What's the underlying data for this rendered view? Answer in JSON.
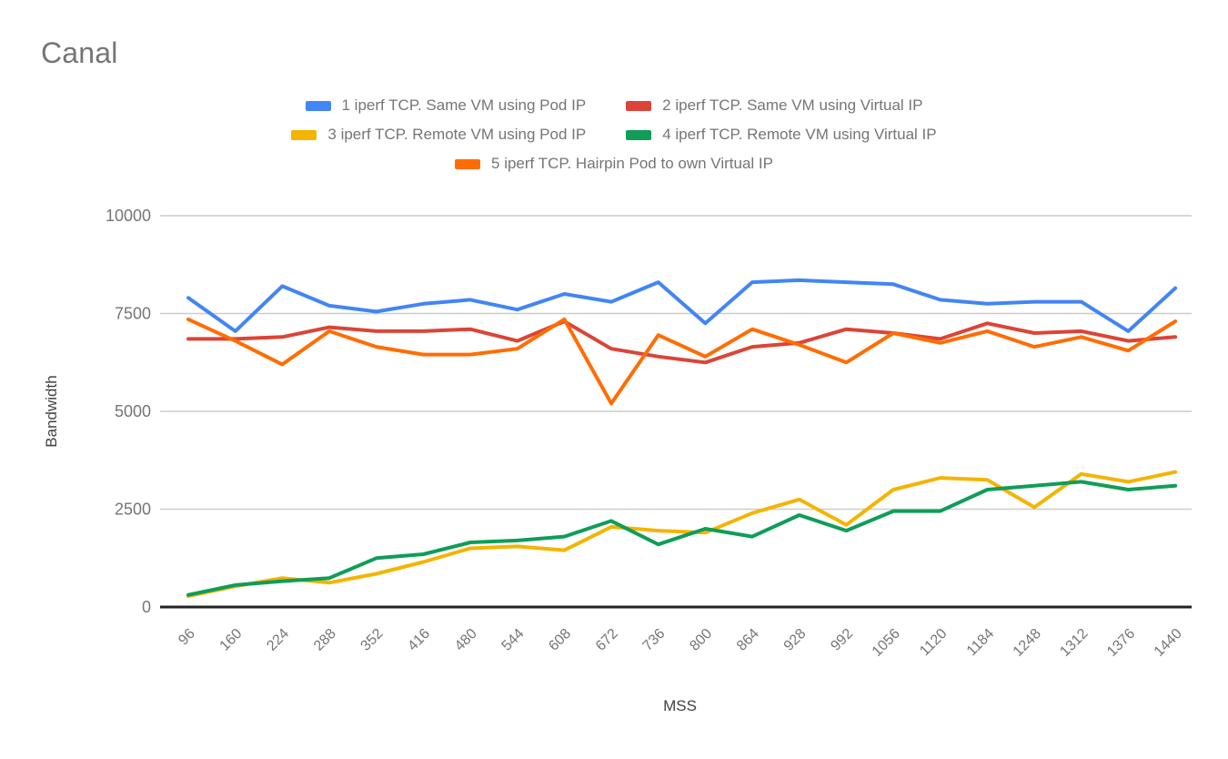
{
  "chart_data": {
    "type": "line",
    "title": "Canal",
    "xlabel": "MSS",
    "ylabel": "Bandwidth",
    "ylim": [
      0,
      10000
    ],
    "yticks": [
      0,
      2500,
      5000,
      7500,
      10000
    ],
    "grid": true,
    "legend_position": "top",
    "categories": [
      "96",
      "160",
      "224",
      "288",
      "352",
      "416",
      "480",
      "544",
      "608",
      "672",
      "736",
      "800",
      "864",
      "928",
      "992",
      "1056",
      "1120",
      "1184",
      "1248",
      "1312",
      "1376",
      "1440"
    ],
    "series": [
      {
        "name": "1 iperf TCP. Same VM using Pod IP",
        "color": "#4285F4",
        "values": [
          7900,
          7050,
          8200,
          7700,
          7550,
          7750,
          7850,
          7600,
          8000,
          7800,
          8300,
          7250,
          8300,
          8350,
          8300,
          8250,
          7850,
          7750,
          7800,
          7800,
          7050,
          8150
        ]
      },
      {
        "name": "2 iperf TCP. Same VM using Virtual IP",
        "color": "#DB4437",
        "values": [
          6850,
          6850,
          6900,
          7150,
          7050,
          7050,
          7100,
          6800,
          7300,
          6600,
          6400,
          6250,
          6650,
          6750,
          7100,
          7000,
          6850,
          7250,
          7000,
          7050,
          6800,
          6900
        ]
      },
      {
        "name": "3 iperf TCP. Remote VM using Pod IP",
        "color": "#F4B400",
        "values": [
          280,
          530,
          740,
          620,
          850,
          1150,
          1500,
          1550,
          1450,
          2050,
          1950,
          1900,
          2400,
          2750,
          2100,
          3000,
          3300,
          3250,
          2550,
          3400,
          3200,
          3450
        ]
      },
      {
        "name": "4 iperf TCP. Remote VM using Virtual IP",
        "color": "#0F9D58",
        "values": [
          310,
          560,
          660,
          740,
          1250,
          1350,
          1650,
          1700,
          1800,
          2200,
          1600,
          2000,
          1800,
          2350,
          1950,
          2450,
          2450,
          3000,
          3100,
          3200,
          3000,
          3100
        ]
      },
      {
        "name": "5 iperf TCP. Hairpin Pod to own Virtual IP",
        "color": "#FF6D00",
        "values": [
          7350,
          6800,
          6200,
          7050,
          6650,
          6450,
          6450,
          6600,
          7350,
          5200,
          6950,
          6400,
          7100,
          6700,
          6250,
          7000,
          6750,
          7050,
          6650,
          6900,
          6550,
          7300
        ]
      }
    ],
    "axis_colors": {
      "grid": "#cccccc",
      "axis_line": "#212121",
      "tick_label": "#757575",
      "axis_title": "#424242",
      "title": "#757575"
    }
  }
}
